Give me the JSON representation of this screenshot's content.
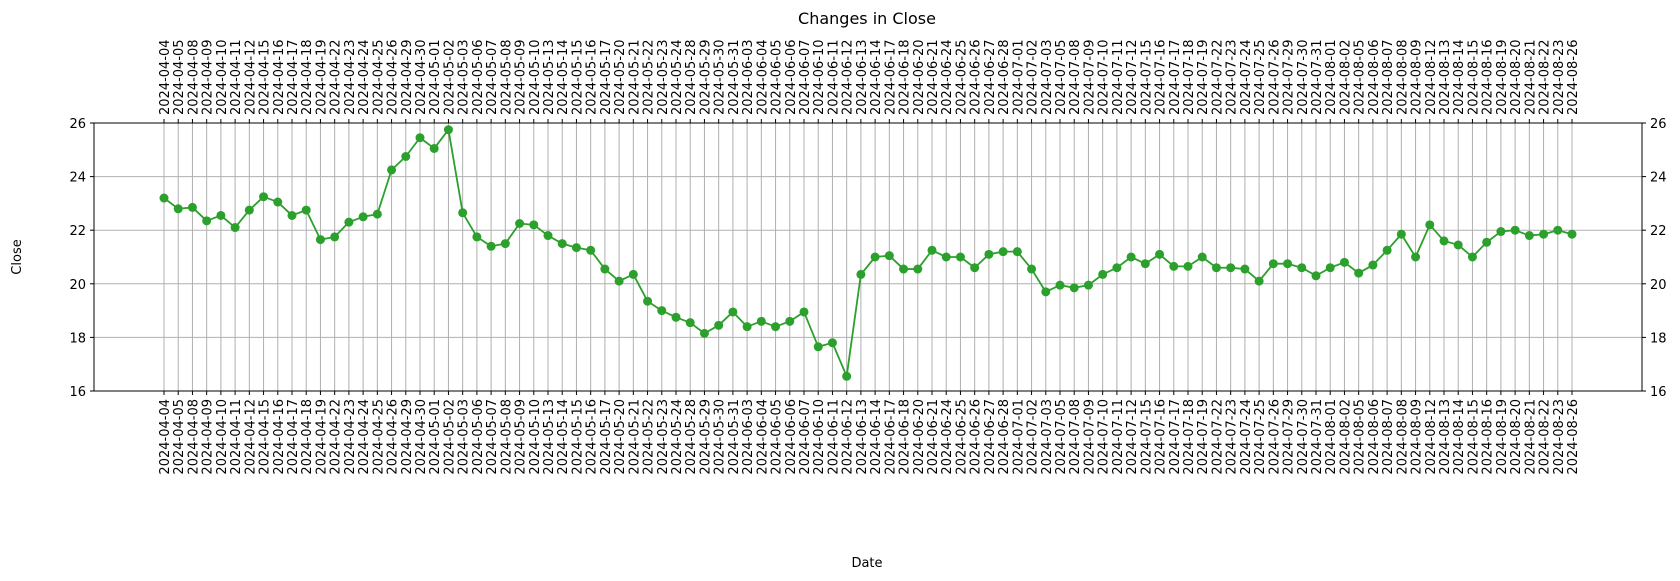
{
  "chart_data": {
    "type": "line",
    "title": "Changes in Close",
    "xlabel": "Date",
    "ylabel": "Close",
    "ylim": [
      16,
      26
    ],
    "yticks": [
      16,
      18,
      20,
      22,
      24,
      26
    ],
    "grid": true,
    "tick_labels_top_and_bottom": true,
    "y_ticks_left_and_right": true,
    "line_color": "#2ca02c",
    "marker": "circle",
    "x": [
      "2024-04-04",
      "2024-04-05",
      "2024-04-08",
      "2024-04-09",
      "2024-04-10",
      "2024-04-11",
      "2024-04-12",
      "2024-04-15",
      "2024-04-16",
      "2024-04-17",
      "2024-04-18",
      "2024-04-19",
      "2024-04-22",
      "2024-04-23",
      "2024-04-24",
      "2024-04-25",
      "2024-04-26",
      "2024-04-29",
      "2024-04-30",
      "2024-05-01",
      "2024-05-02",
      "2024-05-03",
      "2024-05-06",
      "2024-05-07",
      "2024-05-08",
      "2024-05-09",
      "2024-05-10",
      "2024-05-13",
      "2024-05-14",
      "2024-05-15",
      "2024-05-16",
      "2024-05-17",
      "2024-05-20",
      "2024-05-21",
      "2024-05-22",
      "2024-05-23",
      "2024-05-24",
      "2024-05-28",
      "2024-05-29",
      "2024-05-30",
      "2024-05-31",
      "2024-06-03",
      "2024-06-04",
      "2024-06-05",
      "2024-06-06",
      "2024-06-07",
      "2024-06-10",
      "2024-06-11",
      "2024-06-12",
      "2024-06-13",
      "2024-06-14",
      "2024-06-17",
      "2024-06-18",
      "2024-06-20",
      "2024-06-21",
      "2024-06-24",
      "2024-06-25",
      "2024-06-26",
      "2024-06-27",
      "2024-06-28",
      "2024-07-01",
      "2024-07-02",
      "2024-07-03",
      "2024-07-05",
      "2024-07-08",
      "2024-07-09",
      "2024-07-10",
      "2024-07-11",
      "2024-07-12",
      "2024-07-15",
      "2024-07-16",
      "2024-07-17",
      "2024-07-18",
      "2024-07-19",
      "2024-07-22",
      "2024-07-23",
      "2024-07-24",
      "2024-07-25",
      "2024-07-26",
      "2024-07-29",
      "2024-07-30",
      "2024-07-31",
      "2024-08-01",
      "2024-08-02",
      "2024-08-05",
      "2024-08-06",
      "2024-08-07",
      "2024-08-08",
      "2024-08-09",
      "2024-08-12",
      "2024-08-13",
      "2024-08-14",
      "2024-08-15",
      "2024-08-16",
      "2024-08-19",
      "2024-08-20",
      "2024-08-21",
      "2024-08-22",
      "2024-08-23",
      "2024-08-26"
    ],
    "series": [
      {
        "values": [
          23.2,
          22.8,
          22.85,
          22.35,
          22.55,
          22.1,
          22.75,
          23.25,
          23.05,
          22.55,
          22.75,
          21.65,
          21.75,
          22.3,
          22.5,
          22.6,
          24.25,
          24.75,
          25.45,
          25.05,
          25.75,
          22.65,
          21.75,
          21.4,
          21.5,
          22.25,
          22.2,
          21.8,
          21.5,
          21.35,
          21.25,
          20.55,
          20.1,
          20.35,
          19.35,
          19.0,
          18.75,
          18.55,
          18.15,
          18.45,
          18.95,
          18.4,
          18.6,
          18.4,
          18.6,
          18.95,
          17.65,
          17.8,
          16.55,
          20.35,
          21.0,
          21.05,
          20.55,
          20.55,
          21.25,
          21.0,
          21.0,
          20.6,
          21.1,
          21.2,
          21.2,
          20.55,
          19.7,
          19.95,
          19.85,
          19.95,
          20.35,
          20.6,
          21.0,
          20.75,
          21.1,
          20.65,
          20.65,
          21.0,
          20.6,
          20.6,
          20.55,
          20.1,
          20.75,
          20.75,
          20.6,
          20.3,
          20.6,
          20.8,
          20.4,
          20.7,
          21.25,
          21.85,
          21.0,
          22.2,
          21.6,
          21.45,
          21.0,
          21.55,
          21.95,
          22.0,
          21.8,
          21.85,
          22.0,
          21.85
        ]
      }
    ]
  }
}
